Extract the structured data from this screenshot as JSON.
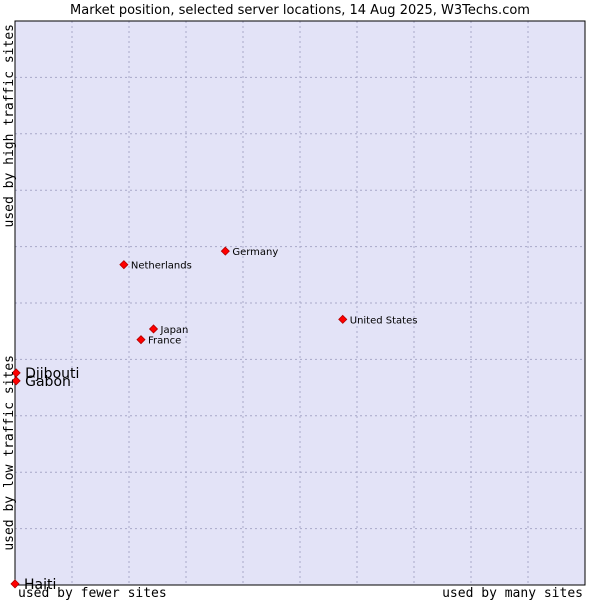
{
  "chart_data": {
    "type": "scatter",
    "title": "Market position, selected server locations, 14 Aug 2025, W3Techs.com",
    "xlabel_left": "used by fewer sites",
    "xlabel_right": "used by many sites",
    "ylabel_top": "used by high traffic sites",
    "ylabel_bottom": "used by low traffic sites",
    "grid": true,
    "xlim": [
      0,
      100
    ],
    "ylim": [
      0,
      100
    ],
    "points": [
      {
        "name": "Germany",
        "x": 36.9,
        "y": 59.2,
        "size": "small"
      },
      {
        "name": "Netherlands",
        "x": 19.1,
        "y": 56.8,
        "size": "small"
      },
      {
        "name": "United States",
        "x": 57.5,
        "y": 47.1,
        "size": "small"
      },
      {
        "name": "Japan",
        "x": 24.3,
        "y": 45.4,
        "size": "small"
      },
      {
        "name": "France",
        "x": 22.1,
        "y": 43.5,
        "size": "small"
      },
      {
        "name": "Djibouti",
        "x": 0.2,
        "y": 37.6,
        "size": "big"
      },
      {
        "name": "Gabon",
        "x": 0.2,
        "y": 36.2,
        "size": "big"
      },
      {
        "name": "Haiti",
        "x": 0.0,
        "y": 0.2,
        "size": "big"
      }
    ],
    "colors": {
      "plot_bg": "#e3e3f7",
      "grid": "#a8a8c8",
      "marker": "#ff0000",
      "marker_edge": "#b00000",
      "border": "#000000"
    }
  }
}
